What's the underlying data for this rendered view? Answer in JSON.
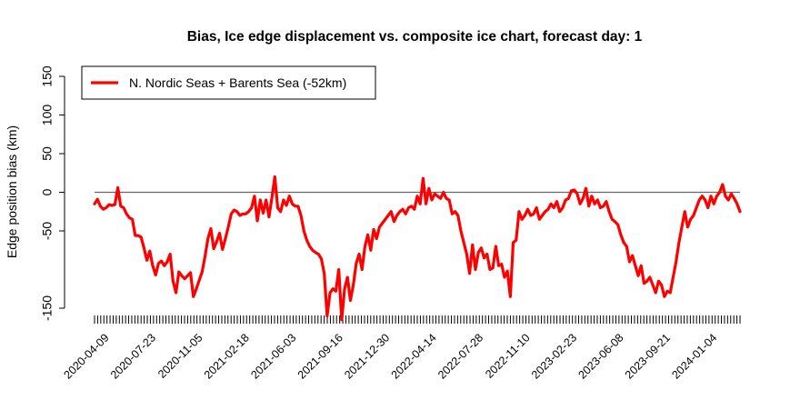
{
  "chart_data": {
    "type": "line",
    "title": "Bias, Ice edge displacement vs. composite ice chart, forecast day: 1",
    "xlabel": "",
    "ylabel": "Edge position bias (km)",
    "ylim": [
      -150,
      150
    ],
    "yticks": [
      -150,
      -50,
      0,
      50,
      100,
      150
    ],
    "xtick_labels": [
      "2020-04-09",
      "2020-07-23",
      "2020-11-05",
      "2021-02-18",
      "2021-06-03",
      "2021-09-16",
      "2021-12-30",
      "2022-04-14",
      "2022-07-28",
      "2022-11-10",
      "2023-02-23",
      "2023-06-08",
      "2023-09-21",
      "2024-01-04"
    ],
    "x_start": "2020-03-19",
    "x_end": "2024-03-07",
    "reference_line": 0,
    "grid": false,
    "legend_position": "top-left",
    "series": [
      {
        "name": "N. Nordic Seas + Barents Sea (-52km)",
        "color": "#ff0000",
        "values": [
          -15,
          -9,
          -18,
          -22,
          -20,
          -16,
          -17,
          -16,
          6,
          -18,
          -20,
          -28,
          -33,
          -35,
          -56,
          -56,
          -58,
          -72,
          -88,
          -76,
          -95,
          -107,
          -92,
          -89,
          -95,
          -90,
          -80,
          -115,
          -130,
          -103,
          -108,
          -112,
          -108,
          -104,
          -135,
          -125,
          -114,
          -103,
          -83,
          -60,
          -47,
          -73,
          -64,
          -53,
          -74,
          -60,
          -45,
          -28,
          -23,
          -25,
          -30,
          -28,
          -28,
          -25,
          -20,
          -5,
          -37,
          -10,
          -27,
          -10,
          -32,
          -7,
          20,
          -20,
          -25,
          -10,
          -17,
          -5,
          -15,
          -18,
          -18,
          -30,
          -50,
          -62,
          -70,
          -75,
          -78,
          -80,
          -86,
          -105,
          -160,
          -130,
          -125,
          -128,
          -100,
          -165,
          -125,
          -110,
          -140,
          -120,
          -92,
          -80,
          -100,
          -70,
          -55,
          -75,
          -48,
          -60,
          -45,
          -40,
          -35,
          -30,
          -25,
          -38,
          -30,
          -25,
          -22,
          -28,
          -20,
          -18,
          -22,
          -5,
          -15,
          18,
          -15,
          5,
          -10,
          -2,
          -5,
          -8,
          0,
          -8,
          -10,
          -28,
          -25,
          -30,
          -50,
          -65,
          -80,
          -105,
          -68,
          -100,
          -78,
          -72,
          -85,
          -80,
          -100,
          -98,
          -70,
          -95,
          -93,
          -110,
          -102,
          -135,
          -65,
          -62,
          -25,
          -35,
          -30,
          -22,
          -30,
          -28,
          -20,
          -35,
          -30,
          -25,
          -22,
          -15,
          -20,
          -12,
          -25,
          -20,
          -10,
          -8,
          2,
          3,
          -2,
          -15,
          -8,
          5,
          -18,
          -5,
          -15,
          -10,
          -20,
          -18,
          -12,
          -25,
          -35,
          -38,
          -42,
          -55,
          -65,
          -70,
          -90,
          -82,
          -95,
          -108,
          -95,
          -118,
          -115,
          -110,
          -120,
          -130,
          -115,
          -120,
          -135,
          -128,
          -130,
          -110,
          -90,
          -65,
          -45,
          -25,
          -45,
          -35,
          -30,
          -20,
          -10,
          -5,
          -10,
          -20,
          -5,
          -15,
          -5,
          0,
          10,
          -5,
          -10,
          -2,
          -8,
          -15,
          -25
        ]
      }
    ]
  }
}
